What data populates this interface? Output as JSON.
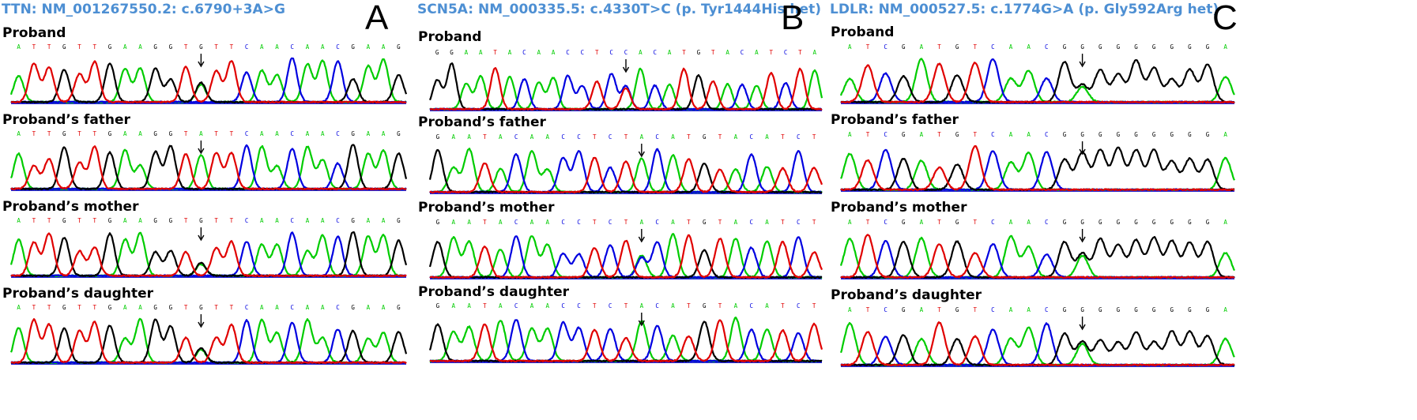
{
  "figure": {
    "colors": {
      "A": "#00cc00",
      "C": "#0000e0",
      "G": "#000000",
      "T": "#e00000",
      "title": "#4d8fd3"
    },
    "panels": [
      {
        "letter": "A",
        "title": "TTN: NM_001267550.2: c.6790+3A>G",
        "tracks": [
          {
            "label": "Proband",
            "sequence": "ATTGTTGAAGGTGTTCAACAACGAAG",
            "arrow_base_index": 12,
            "het_secondary": "A"
          },
          {
            "label": "Proband’s father",
            "sequence": "ATTGTTGAAGGTATTCAACAACGAAG",
            "arrow_base_index": 12,
            "het_secondary": ""
          },
          {
            "label": "Proband’s mother",
            "sequence": "ATTGTTGAAGGTGTTCAACAACGAAG",
            "arrow_base_index": 12,
            "het_secondary": "A"
          },
          {
            "label": "Proband’s daughter",
            "sequence": "ATTGTTGAAGGTGTTCAACAACGAAG",
            "arrow_base_index": 12,
            "het_secondary": "A"
          }
        ]
      },
      {
        "letter": "B",
        "title": "SCN5A: NM_000335.5: c.4330T>C (p. Tyr1444His het)",
        "tracks": [
          {
            "label": "Proband",
            "sequence": "GGAATACAACCTCCACATGTACATCTA",
            "arrow_base_index": 13,
            "het_secondary": "T"
          },
          {
            "label": "Proband’s father",
            "sequence": "GAATACAACCTCTACATGTACATCT",
            "arrow_base_index": 13,
            "het_secondary": ""
          },
          {
            "label": "Proband’s mother",
            "sequence": "GAATACAACCTCTACATGTACATCT",
            "arrow_base_index": 13,
            "het_secondary": "C"
          },
          {
            "label": "Proband’s daughter",
            "sequence": "GAATACAACCTCTACATGTACATCT",
            "arrow_base_index": 13,
            "het_secondary": ""
          }
        ]
      },
      {
        "letter": "C",
        "title": "LDLR: NM_000527.5: c.1774G>A (p. Gly592Arg het)",
        "tracks": [
          {
            "label": "Proband",
            "sequence": "ATCGATGTCAACGGGGGGGGGA",
            "arrow_base_index": 13,
            "het_secondary": "A"
          },
          {
            "label": "Proband’s father",
            "sequence": "ATCGATGTCAACGGGGGGGGGA",
            "arrow_base_index": 13,
            "het_secondary": ""
          },
          {
            "label": "Proband’s mother",
            "sequence": "ATCGATGTCAACGGGGGGGGGA",
            "arrow_base_index": 13,
            "het_secondary": "A"
          },
          {
            "label": "Proband’s daughter",
            "sequence": "ATCGATGTCAACGGGGGGGGGA",
            "arrow_base_index": 13,
            "het_secondary": "A"
          }
        ]
      }
    ]
  }
}
